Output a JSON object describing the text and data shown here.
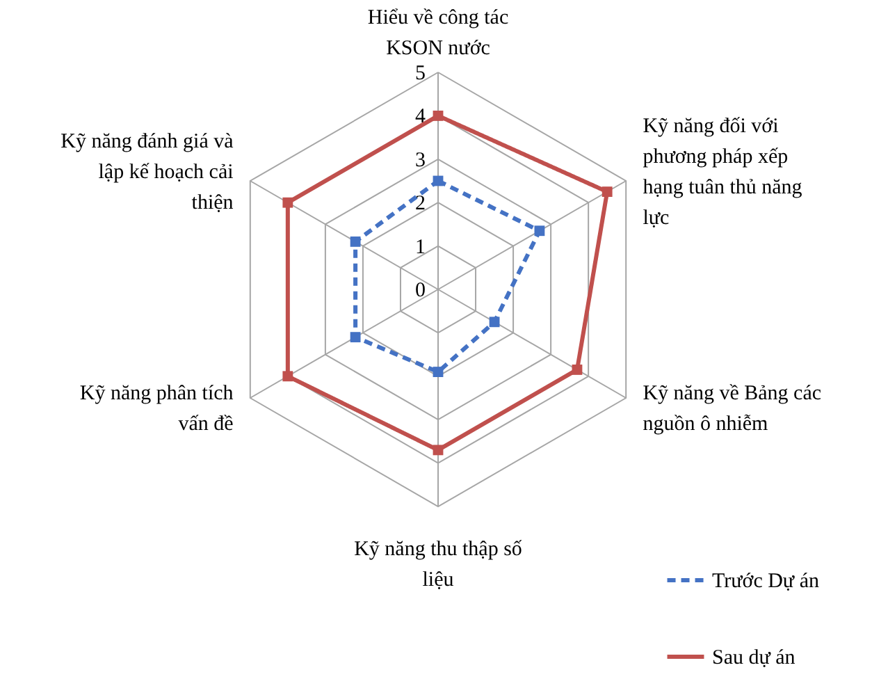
{
  "chart_data": {
    "type": "radar",
    "categories": [
      "Hiểu về công tác KSON nước",
      "Kỹ năng đối với phương pháp xếp hạng tuân thủ năng lực",
      "Kỹ năng về Bảng các nguồn ô nhiễm",
      "Kỹ năng thu thập số liệu",
      "Kỹ năng phân tích vấn đề",
      "Kỹ năng đánh giá và lập kế hoạch cải thiện"
    ],
    "series": [
      {
        "name": "Trước Dự án",
        "color": "#4472c4",
        "line_style": "dashed",
        "values": [
          2.5,
          2.7,
          1.5,
          1.9,
          2.2,
          2.2
        ]
      },
      {
        "name": "Sau dự án",
        "color": "#c0504d",
        "line_style": "solid",
        "values": [
          4,
          4.5,
          3.7,
          3.7,
          4,
          4
        ]
      }
    ],
    "ylim": [
      0,
      5
    ],
    "yticks": [
      0,
      1,
      2,
      3,
      4,
      5
    ],
    "grid": true,
    "marker": "square",
    "legend": "bottom right"
  }
}
